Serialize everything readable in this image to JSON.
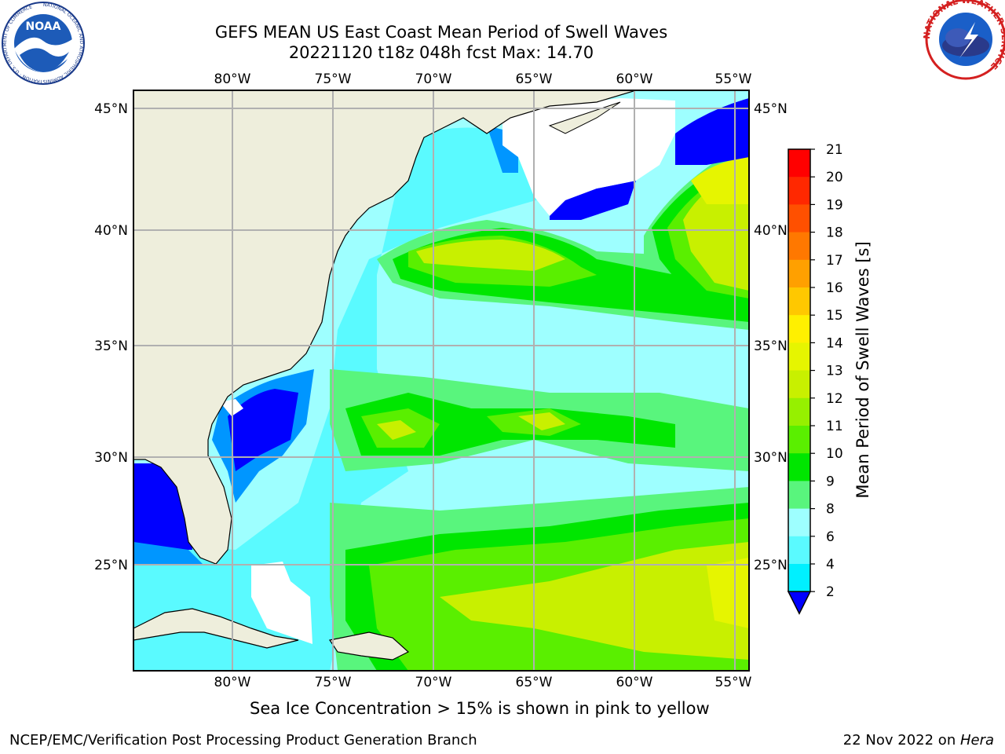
{
  "title": {
    "line1": "GEFS MEAN US East Coast Mean Period of Swell Waves",
    "line2": "20221120 t18z 048h fcst   Max: 14.70"
  },
  "map": {
    "lon_labels": [
      "80°W",
      "75°W",
      "70°W",
      "65°W",
      "60°W",
      "55°W"
    ],
    "lat_labels_left": [
      "45°N",
      "40°N",
      "35°N",
      "30°N",
      "25°N"
    ],
    "lat_labels_right": [
      "45°N",
      "40°N",
      "35°N",
      "30°N",
      "25°N"
    ],
    "land_color": "#eeeedc",
    "grid_color": "#b0b0b0"
  },
  "colorbar": {
    "label": "Mean Period of Swell Waves [s]",
    "ticks": [
      "21",
      "20",
      "19",
      "18",
      "17",
      "16",
      "15",
      "14",
      "13",
      "12",
      "11",
      "10",
      "9",
      "8",
      "6",
      "4",
      "2"
    ],
    "colors_top_to_bottom": [
      "#ff0000",
      "#ff2800",
      "#ff5000",
      "#ff7800",
      "#ffa000",
      "#ffc800",
      "#fff000",
      "#e6f500",
      "#c8f000",
      "#96f000",
      "#5aef00",
      "#00e600",
      "#59f57d",
      "#9effff",
      "#5afaff",
      "#00f0ff",
      "#0096ff"
    ],
    "extend_color": "#0000ff"
  },
  "caption": "Sea Ice Concentration > 15% is shown in pink to yellow",
  "footer": {
    "left": "NCEP/EMC/Verification Post Processing Product Generation Branch",
    "right_date": "22 Nov 2022 on ",
    "right_host": "Hera"
  },
  "logos": {
    "noaa_text": "NOAA",
    "noaa_ring": "NATIONAL OCEANIC AND ATMOSPHERIC ADMINISTRATION · U.S. DEPARTMENT OF COMMERCE",
    "nws_ring": "NATIONAL WEATHER SERVICE"
  }
}
